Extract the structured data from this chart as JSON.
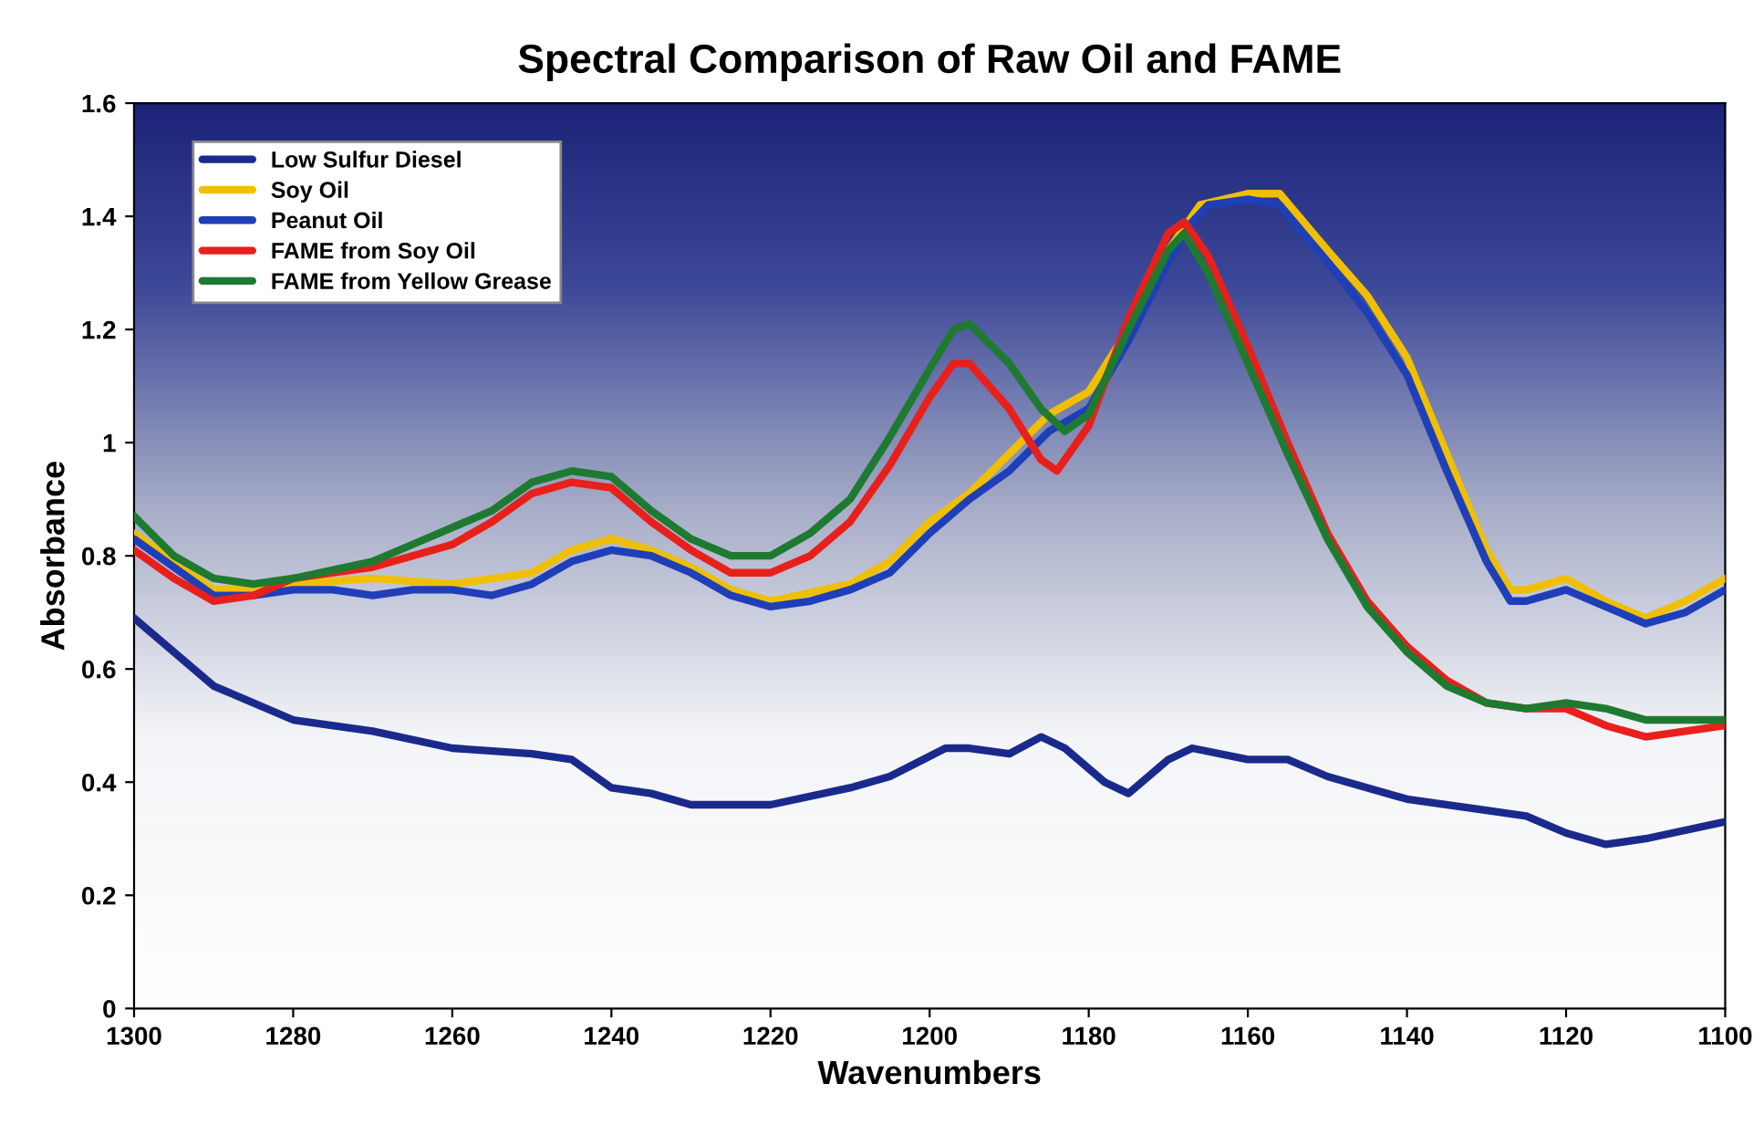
{
  "chart_data": {
    "type": "line",
    "title": "Spectral Comparison of Raw Oil and FAME",
    "xlabel": "Wavenumbers",
    "ylabel": "Absorbance",
    "xlim": [
      1300,
      1100
    ],
    "xticks": [
      1300,
      1280,
      1260,
      1240,
      1220,
      1200,
      1180,
      1160,
      1140,
      1120,
      1100
    ],
    "ylim": [
      0,
      1.6
    ],
    "yticks": [
      0,
      0.2,
      0.4,
      0.6,
      0.8,
      1,
      1.2,
      1.4,
      1.6
    ],
    "grid": false,
    "legend": "top left",
    "marker": "none",
    "line_style": "solid",
    "series": [
      {
        "name": "Low Sulfur Diesel",
        "color": "#1a2a8c",
        "x": [
          1300,
          1290,
          1280,
          1270,
          1260,
          1250,
          1245,
          1240,
          1235,
          1230,
          1220,
          1210,
          1205,
          1198,
          1195,
          1190,
          1186,
          1183,
          1178,
          1175,
          1170,
          1167,
          1160,
          1155,
          1150,
          1140,
          1130,
          1125,
          1120,
          1115,
          1110,
          1100
        ],
        "values": [
          0.69,
          0.57,
          0.51,
          0.49,
          0.46,
          0.45,
          0.44,
          0.39,
          0.38,
          0.36,
          0.36,
          0.39,
          0.41,
          0.46,
          0.46,
          0.45,
          0.48,
          0.46,
          0.4,
          0.38,
          0.44,
          0.46,
          0.44,
          0.44,
          0.41,
          0.37,
          0.35,
          0.34,
          0.31,
          0.29,
          0.3,
          0.33
        ]
      },
      {
        "name": "Soy Oil",
        "color": "#f0c000",
        "x": [
          1300,
          1290,
          1280,
          1270,
          1260,
          1250,
          1245,
          1240,
          1235,
          1230,
          1225,
          1220,
          1210,
          1205,
          1200,
          1195,
          1190,
          1185,
          1180,
          1175,
          1170,
          1166,
          1160,
          1156,
          1150,
          1145,
          1140,
          1135,
          1130,
          1127,
          1125,
          1120,
          1115,
          1110,
          1105,
          1100
        ],
        "values": [
          0.84,
          0.74,
          0.75,
          0.76,
          0.75,
          0.77,
          0.81,
          0.83,
          0.81,
          0.78,
          0.74,
          0.72,
          0.75,
          0.79,
          0.86,
          0.91,
          0.98,
          1.05,
          1.09,
          1.2,
          1.34,
          1.42,
          1.44,
          1.44,
          1.34,
          1.26,
          1.15,
          0.98,
          0.81,
          0.74,
          0.74,
          0.76,
          0.72,
          0.69,
          0.72,
          0.76
        ]
      },
      {
        "name": "Peanut Oil",
        "color": "#1f3fb8",
        "x": [
          1300,
          1295,
          1290,
          1285,
          1280,
          1275,
          1270,
          1265,
          1260,
          1255,
          1250,
          1245,
          1240,
          1235,
          1230,
          1225,
          1220,
          1215,
          1210,
          1205,
          1200,
          1195,
          1190,
          1185,
          1180,
          1175,
          1170,
          1167,
          1165,
          1160,
          1156,
          1150,
          1145,
          1140,
          1135,
          1130,
          1127,
          1125,
          1120,
          1115,
          1110,
          1105,
          1100
        ],
        "values": [
          0.83,
          0.78,
          0.73,
          0.73,
          0.74,
          0.74,
          0.73,
          0.74,
          0.74,
          0.73,
          0.75,
          0.79,
          0.81,
          0.8,
          0.77,
          0.73,
          0.71,
          0.72,
          0.74,
          0.77,
          0.84,
          0.9,
          0.95,
          1.02,
          1.06,
          1.18,
          1.32,
          1.39,
          1.42,
          1.43,
          1.42,
          1.32,
          1.23,
          1.12,
          0.95,
          0.79,
          0.72,
          0.72,
          0.74,
          0.71,
          0.68,
          0.7,
          0.74
        ]
      },
      {
        "name": "FAME from Soy Oil",
        "color": "#e8201c",
        "x": [
          1300,
          1295,
          1290,
          1285,
          1280,
          1270,
          1265,
          1260,
          1255,
          1250,
          1245,
          1240,
          1235,
          1230,
          1225,
          1220,
          1215,
          1210,
          1205,
          1200,
          1197,
          1195,
          1190,
          1186,
          1184,
          1180,
          1175,
          1170,
          1168,
          1165,
          1160,
          1155,
          1150,
          1145,
          1140,
          1135,
          1130,
          1125,
          1120,
          1115,
          1110,
          1105,
          1100
        ],
        "values": [
          0.81,
          0.76,
          0.72,
          0.73,
          0.76,
          0.78,
          0.8,
          0.82,
          0.86,
          0.91,
          0.93,
          0.92,
          0.86,
          0.81,
          0.77,
          0.77,
          0.8,
          0.86,
          0.96,
          1.08,
          1.14,
          1.14,
          1.06,
          0.97,
          0.95,
          1.03,
          1.22,
          1.37,
          1.39,
          1.33,
          1.17,
          1.0,
          0.84,
          0.72,
          0.64,
          0.58,
          0.54,
          0.53,
          0.53,
          0.5,
          0.48,
          0.49,
          0.5
        ]
      },
      {
        "name": "FAME from Yellow Grease",
        "color": "#1e7a30",
        "x": [
          1300,
          1295,
          1290,
          1285,
          1280,
          1270,
          1265,
          1260,
          1255,
          1250,
          1245,
          1240,
          1235,
          1230,
          1225,
          1220,
          1215,
          1210,
          1205,
          1200,
          1197,
          1195,
          1190,
          1186,
          1183,
          1180,
          1175,
          1170,
          1168,
          1165,
          1160,
          1155,
          1150,
          1145,
          1140,
          1135,
          1130,
          1125,
          1120,
          1115,
          1110,
          1105,
          1100
        ],
        "values": [
          0.87,
          0.8,
          0.76,
          0.75,
          0.76,
          0.79,
          0.82,
          0.85,
          0.88,
          0.93,
          0.95,
          0.94,
          0.88,
          0.83,
          0.8,
          0.8,
          0.84,
          0.9,
          1.01,
          1.13,
          1.2,
          1.21,
          1.14,
          1.06,
          1.02,
          1.05,
          1.2,
          1.34,
          1.37,
          1.3,
          1.14,
          0.98,
          0.83,
          0.71,
          0.63,
          0.57,
          0.54,
          0.53,
          0.54,
          0.53,
          0.51,
          0.51,
          0.51
        ]
      }
    ]
  }
}
